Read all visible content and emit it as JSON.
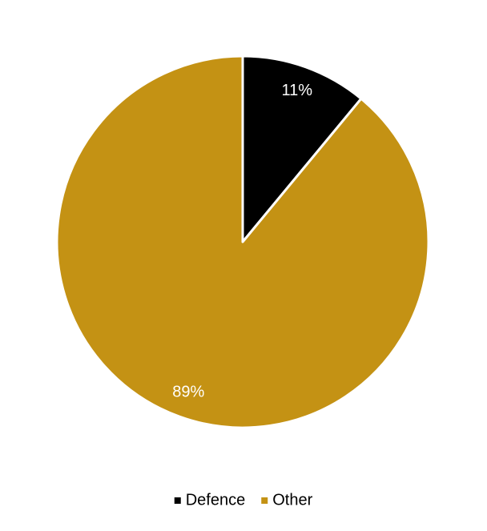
{
  "chart_data": {
    "type": "pie",
    "categories": [
      "Defence",
      "Other"
    ],
    "values": [
      11,
      89
    ],
    "value_labels": [
      "11%",
      "89%"
    ],
    "colors": [
      "#000000",
      "#c49214"
    ],
    "legend": "bottom"
  }
}
